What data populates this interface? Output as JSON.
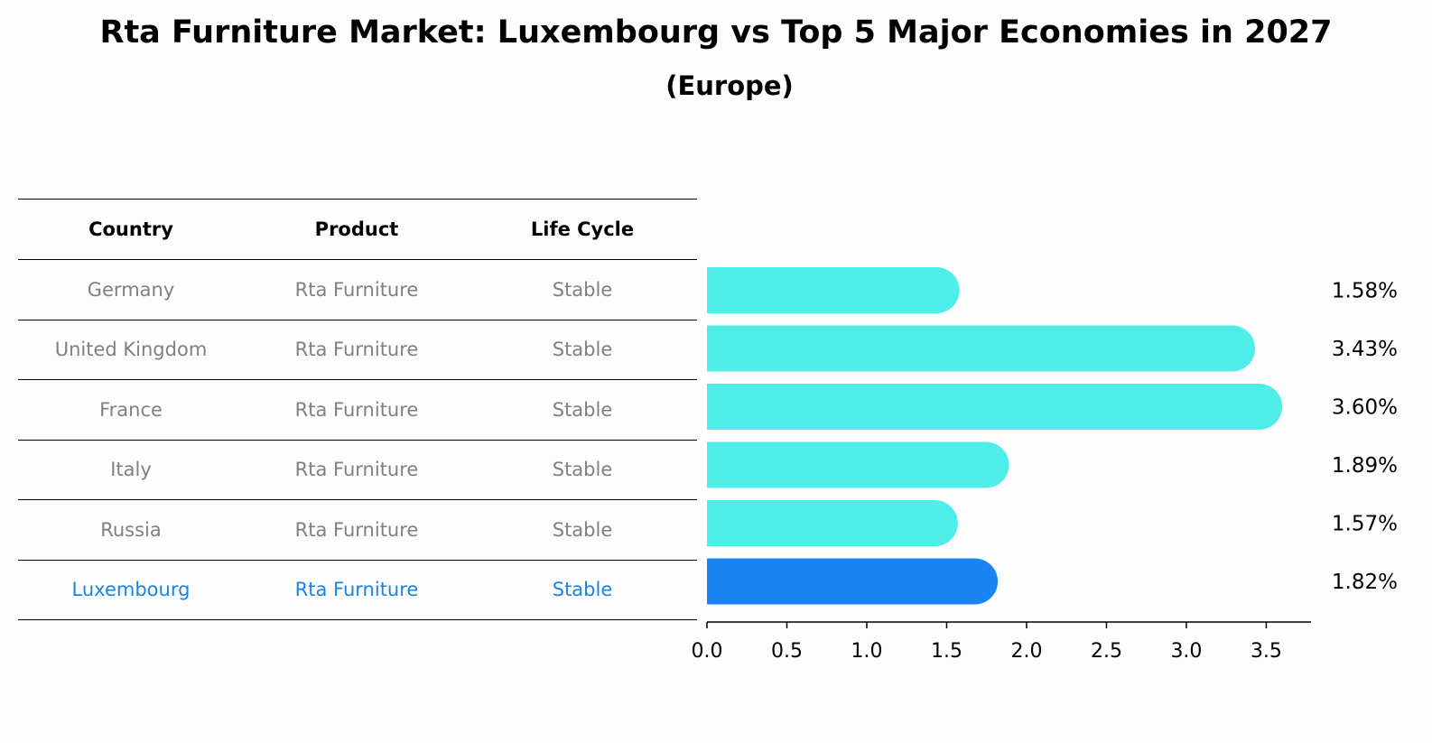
{
  "title": "Rta Furniture Market: Luxembourg vs Top 5 Major Economies in 2027",
  "subtitle": "(Europe)",
  "table": {
    "headers": [
      "Country",
      "Product",
      "Life Cycle"
    ],
    "rows": [
      {
        "country": "Germany",
        "product": "Rta Furniture",
        "life_cycle": "Stable"
      },
      {
        "country": "United Kingdom",
        "product": "Rta Furniture",
        "life_cycle": "Stable"
      },
      {
        "country": "France",
        "product": "Rta Furniture",
        "life_cycle": "Stable"
      },
      {
        "country": "Italy",
        "product": "Rta Furniture",
        "life_cycle": "Stable"
      },
      {
        "country": "Russia",
        "product": "Rta Furniture",
        "life_cycle": "Stable"
      },
      {
        "country": "Luxembourg",
        "product": "Rta Furniture",
        "life_cycle": "Stable"
      }
    ]
  },
  "colors": {
    "bar": "#4eede9",
    "highlight": "#1a84f5",
    "highlight_text": "#1a84e6",
    "muted_text": "#808080"
  },
  "chart_data": {
    "type": "bar",
    "orientation": "horizontal",
    "categories": [
      "Germany",
      "United Kingdom",
      "France",
      "Italy",
      "Russia",
      "Luxembourg"
    ],
    "values": [
      1.58,
      3.43,
      3.6,
      1.89,
      1.57,
      1.82
    ],
    "value_labels": [
      "1.58%",
      "3.43%",
      "3.60%",
      "1.89%",
      "1.57%",
      "1.82%"
    ],
    "highlight_category": "Luxembourg",
    "xlim": [
      0,
      3.78
    ],
    "xticks": [
      0.0,
      0.5,
      1.0,
      1.5,
      2.0,
      2.5,
      3.0,
      3.5
    ],
    "xtick_labels": [
      "0.0",
      "0.5",
      "1.0",
      "1.5",
      "2.0",
      "2.5",
      "3.0",
      "3.5"
    ],
    "grid": false,
    "legend": "none"
  }
}
